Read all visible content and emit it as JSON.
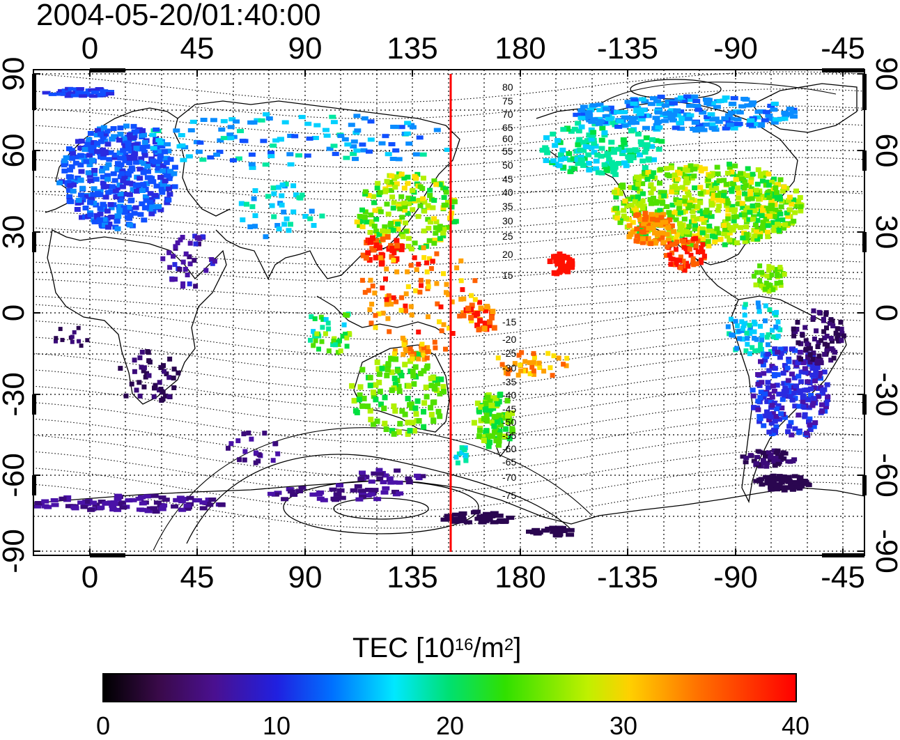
{
  "timestamp": "2004-05-20/01:40:00",
  "map": {
    "top_lon_labels": [
      "0",
      "45",
      "90",
      "135",
      "180",
      "-135",
      "-90",
      "-45"
    ],
    "bottom_lon_labels": [
      "0",
      "45",
      "90",
      "135",
      "180",
      "-135",
      "-90",
      "-45"
    ],
    "left_lat_labels": [
      "90",
      "60",
      "30",
      "0",
      "-30",
      "-60",
      "-90"
    ],
    "right_lat_labels": [
      "90",
      "60",
      "30",
      "0",
      "-30",
      "-60",
      "-90"
    ],
    "contour_labels_north": [
      "80",
      "75",
      "70",
      "65",
      "60",
      "55",
      "50",
      "45",
      "40",
      "35",
      "30",
      "25",
      "20",
      "15"
    ],
    "contour_labels_south": [
      "-15",
      "-20",
      "-25",
      "-30",
      "-35",
      "-40",
      "-45",
      "-50",
      "-55",
      "-60",
      "-65",
      "-70",
      "-75"
    ],
    "marker_line_color": "#ff0000"
  },
  "colorbar": {
    "title_main": "TEC  [10",
    "title_exp1": "16",
    "title_mid": "/m",
    "title_exp2": "2",
    "title_end": "]",
    "ticks": [
      "0",
      "10",
      "20",
      "30",
      "40"
    ]
  }
}
